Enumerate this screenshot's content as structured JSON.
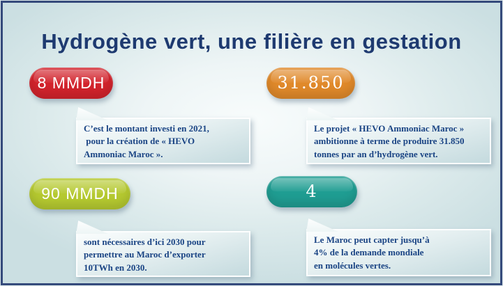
{
  "page": {
    "title": "Hydrogène vert, une filière en gestation"
  },
  "colors": {
    "frame_navy": "#34497b",
    "title_navy": "#1e3a70",
    "text_navy": "#1a4484",
    "badge_red": "#d2232c",
    "badge_orange": "#e0892a",
    "badge_green": "#b5c930",
    "badge_teal": "#1f9d92"
  },
  "cards": [
    {
      "badge_label": "8 MMDH",
      "badge_color": "red",
      "description": "C’est le montant investi en 2021,\n pour la création de « HEVO\nAmmoniac Maroc »."
    },
    {
      "badge_label": "31.850",
      "badge_color": "orange",
      "description": "Le projet « HEVO Ammoniac Maroc »\nambitionne à terme de produire 31.850\ntonnes par an d’hydrogène vert."
    },
    {
      "badge_label": "90 MMDH",
      "badge_color": "green",
      "description": "sont nécessaires d’ici 2030 pour\npermettre au Maroc d’exporter\n10TWh en 2030."
    },
    {
      "badge_label": "4",
      "badge_color": "teal",
      "description": "Le Maroc peut capter jusqu’à\n4% de la demande mondiale\nen molécules vertes."
    }
  ]
}
